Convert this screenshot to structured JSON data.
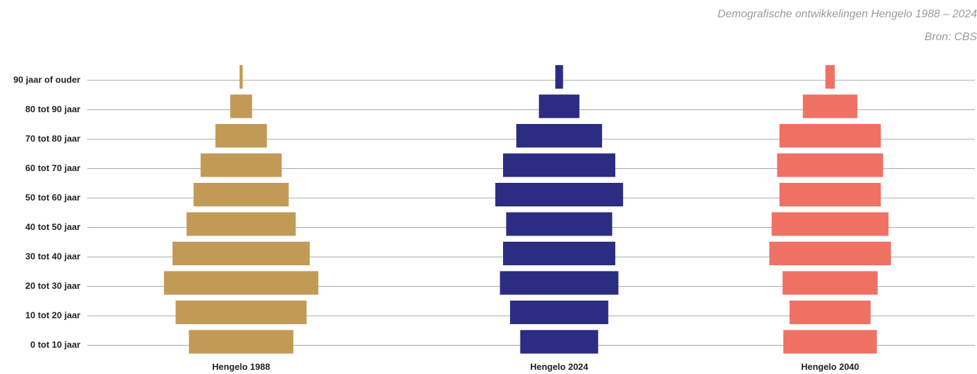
{
  "header": {
    "title": "Demografische ontwikkelingen Hengelo 1988 – 2024",
    "source": "Bron: CBS"
  },
  "chart_data": {
    "type": "bar",
    "categories": [
      "90 jaar of ouder",
      "80 tot 90 jaar",
      "70 tot 80 jaar",
      "60 tot 70 jaar",
      "50 tot 60 jaar",
      "40 tot 50 jaar",
      "30 tot 40 jaar",
      "20 tot 30 jaar",
      "10 tot 20 jaar",
      "0 tot 10 jaar"
    ],
    "series": [
      {
        "name": "Hengelo 1988",
        "color": "#C19A56",
        "values": [
          0.2,
          1.4,
          3.3,
          5.2,
          6.1,
          7.0,
          8.8,
          9.9,
          8.4,
          6.7
        ]
      },
      {
        "name": "Hengelo 2024",
        "color": "#2B2D83",
        "values": [
          0.5,
          2.6,
          5.5,
          7.2,
          8.2,
          6.8,
          7.2,
          7.6,
          6.3,
          5.0
        ]
      },
      {
        "name": "Hengelo 2040",
        "color": "#EF7164",
        "values": [
          0.6,
          3.5,
          6.5,
          6.8,
          6.5,
          7.5,
          7.8,
          6.1,
          5.2,
          6.0
        ]
      }
    ]
  }
}
